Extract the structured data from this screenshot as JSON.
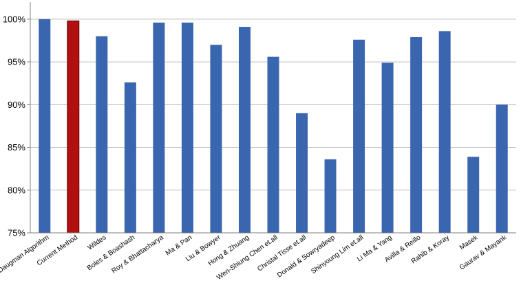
{
  "chart_data": {
    "type": "bar",
    "title": "",
    "xlabel": "",
    "ylabel": "",
    "ylim": [
      75,
      102
    ],
    "y_ticks": [
      75,
      80,
      85,
      90,
      95,
      100
    ],
    "y_tick_suffix": "%",
    "grid": true,
    "legend": "none",
    "categories": [
      "Daugman Algorithm",
      "Current Method",
      "Wildes",
      "Boles & Boashash",
      "Roy & Bhattacharya",
      "Ma & Pan",
      "Liu & Bowyer",
      "Hong & Zhuang",
      "Wen-Shiung Chen et.all",
      "Christal Tisse et.all",
      "Donald & Sowryadeep",
      "Shinyoung Lim et.all",
      "Li Ma & Yang",
      "Avilla & Reillo",
      "Rahib & Koray",
      "Masek",
      "Gaurav & Mayank"
    ],
    "values": [
      100,
      99.8,
      98.0,
      92.6,
      99.6,
      99.6,
      97.0,
      99.1,
      95.6,
      89.0,
      83.6,
      97.6,
      94.9,
      97.9,
      98.6,
      83.9,
      90.0
    ],
    "highlight_index": 1,
    "colors": {
      "bar": "#3a66b0",
      "bar_highlight": "#b01010",
      "grid": "#bdbdbd",
      "axis": "#7f7f7f",
      "text": "#000000"
    }
  }
}
